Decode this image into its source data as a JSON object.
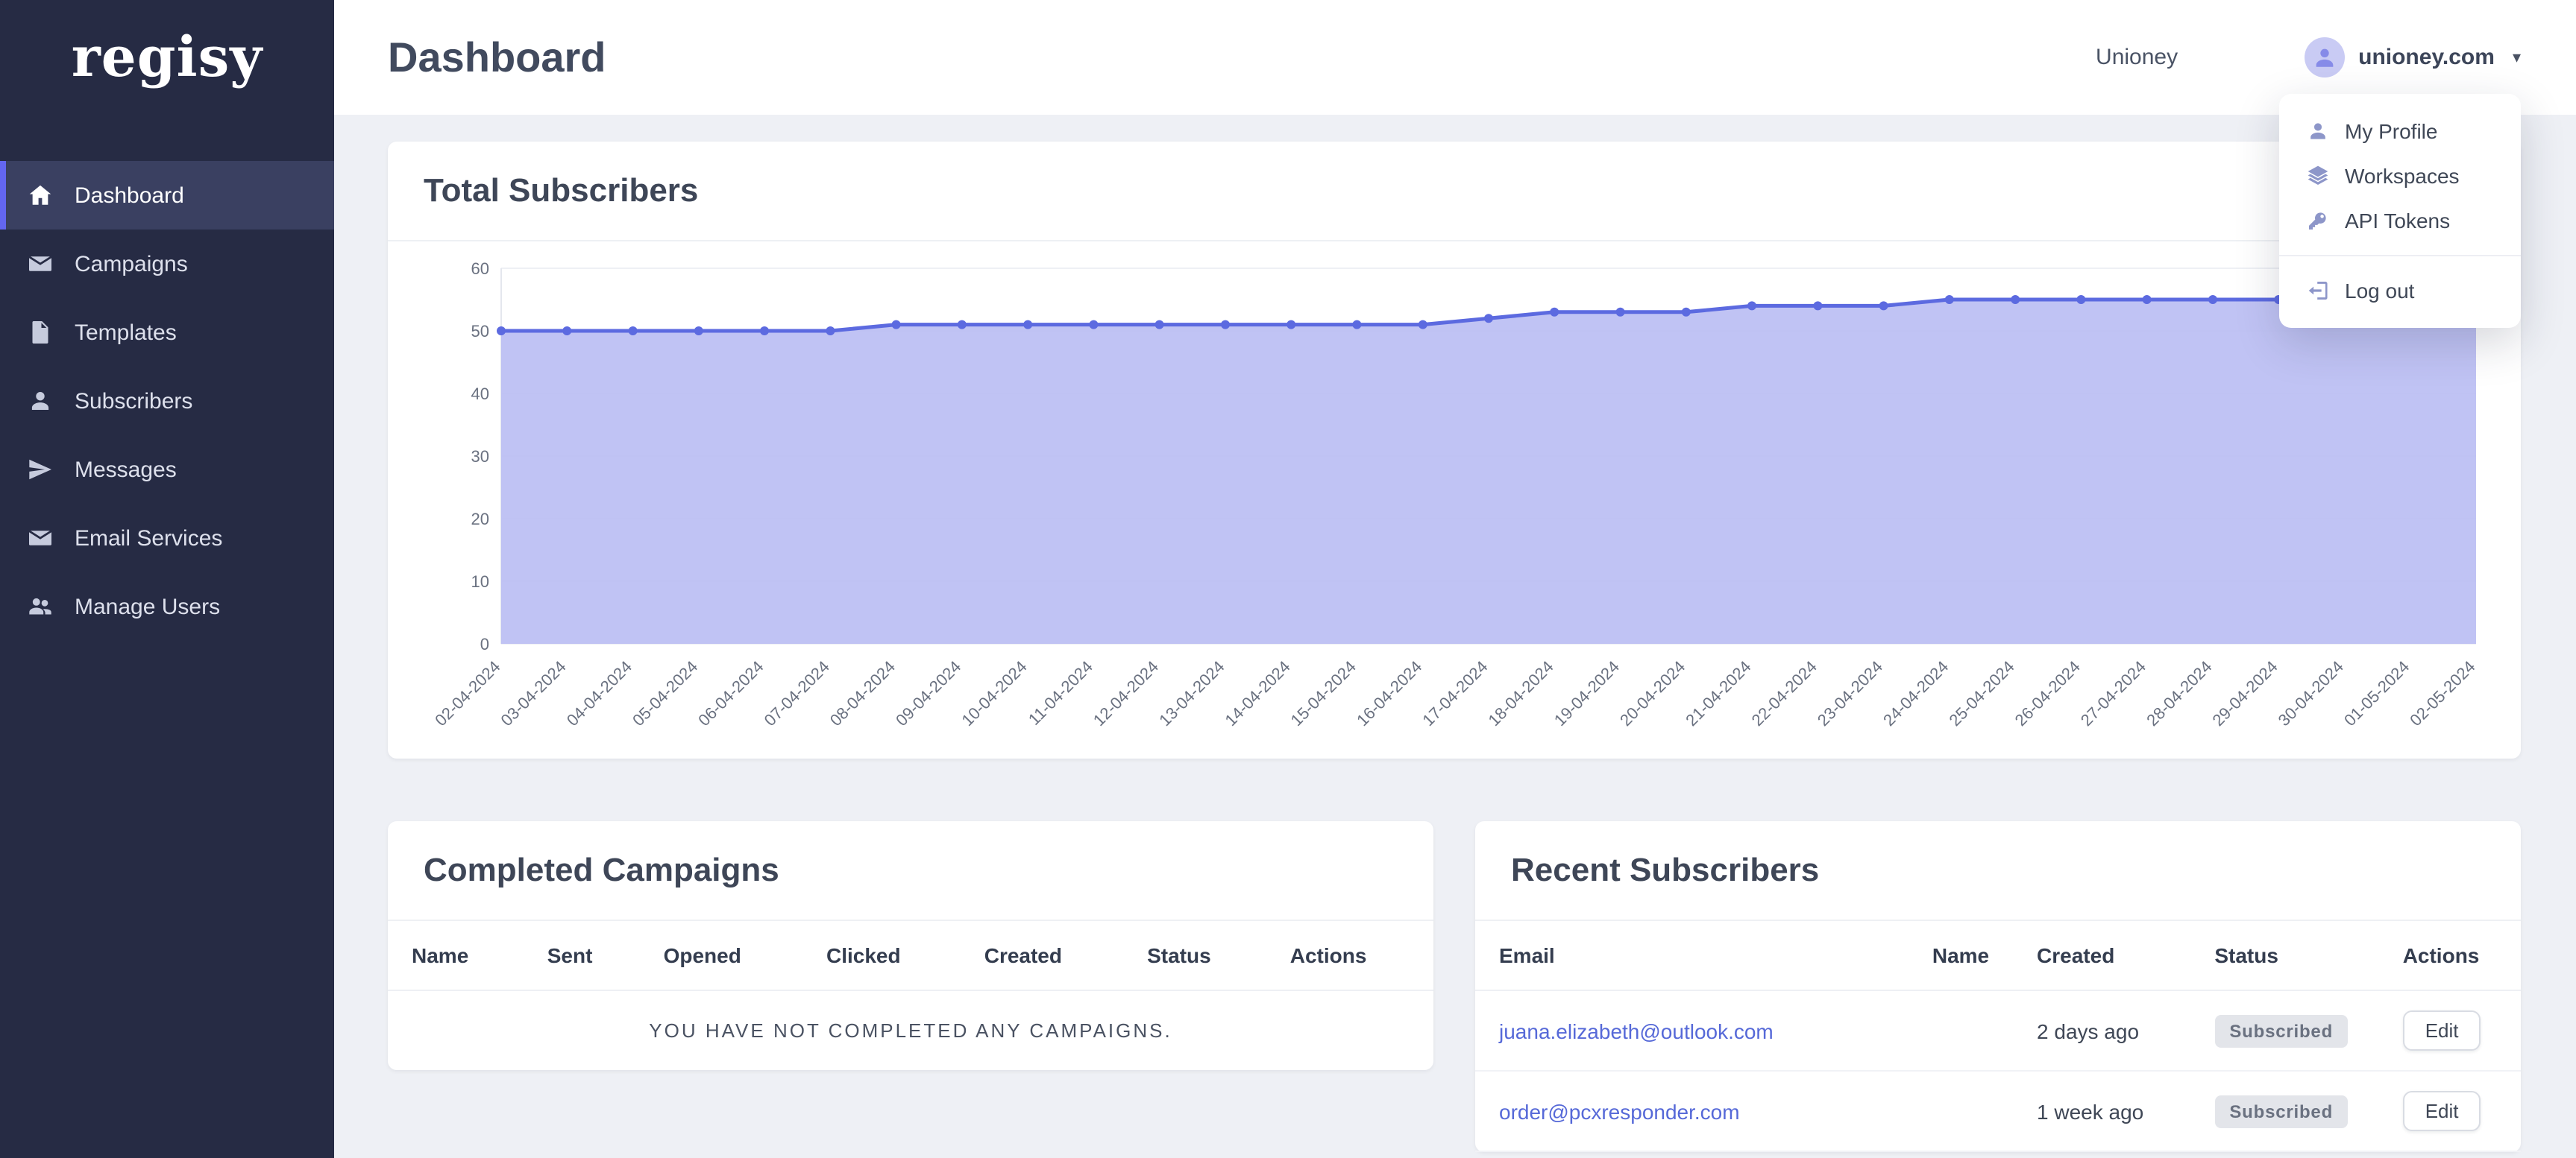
{
  "app": {
    "logo": "regisy"
  },
  "colors": {
    "accent": "#6366f1",
    "sidebar_bg": "#262b44",
    "link": "#5669d8",
    "chart_line": "#5c6ae0",
    "chart_fill": "#b9bdf3",
    "grid": "#eef0f5",
    "axis": "#e4e7ee",
    "tick_text": "#6a7180"
  },
  "sidebar": {
    "items": [
      {
        "label": "Dashboard",
        "icon": "home",
        "active": true
      },
      {
        "label": "Campaigns",
        "icon": "envelope",
        "active": false
      },
      {
        "label": "Templates",
        "icon": "file",
        "active": false
      },
      {
        "label": "Subscribers",
        "icon": "user",
        "active": false
      },
      {
        "label": "Messages",
        "icon": "paper-plane",
        "active": false
      },
      {
        "label": "Email Services",
        "icon": "envelope",
        "active": false
      },
      {
        "label": "Manage Users",
        "icon": "users",
        "active": false
      }
    ]
  },
  "topbar": {
    "title": "Dashboard",
    "workspace": "Unioney",
    "account": "unioney.com"
  },
  "user_menu": {
    "items": [
      {
        "label": "My Profile",
        "icon": "user"
      },
      {
        "label": "Workspaces",
        "icon": "layers"
      },
      {
        "label": "API Tokens",
        "icon": "key"
      }
    ],
    "logout": {
      "label": "Log out",
      "icon": "logout"
    }
  },
  "chart_card": {
    "title": "Total Subscribers"
  },
  "chart_data": {
    "type": "area",
    "title": "Total Subscribers",
    "x": [
      "02-04-2024",
      "03-04-2024",
      "04-04-2024",
      "05-04-2024",
      "06-04-2024",
      "07-04-2024",
      "08-04-2024",
      "09-04-2024",
      "10-04-2024",
      "11-04-2024",
      "12-04-2024",
      "13-04-2024",
      "14-04-2024",
      "15-04-2024",
      "16-04-2024",
      "17-04-2024",
      "18-04-2024",
      "19-04-2024",
      "20-04-2024",
      "21-04-2024",
      "22-04-2024",
      "23-04-2024",
      "24-04-2024",
      "25-04-2024",
      "26-04-2024",
      "27-04-2024",
      "28-04-2024",
      "29-04-2024",
      "30-04-2024",
      "01-05-2024",
      "02-05-2024"
    ],
    "series": [
      {
        "name": "Total Subscribers",
        "values": [
          50,
          50,
          50,
          50,
          50,
          50,
          51,
          51,
          51,
          51,
          51,
          51,
          51,
          51,
          51,
          52,
          53,
          53,
          53,
          54,
          54,
          54,
          55,
          55,
          55,
          55,
          55,
          55,
          55,
          56,
          57
        ]
      }
    ],
    "ylim": [
      0,
      60
    ],
    "yticks": [
      0,
      10,
      20,
      30,
      40,
      50,
      60
    ],
    "grid": true,
    "legend": false,
    "marker": "circle",
    "xlabel": "",
    "ylabel": ""
  },
  "campaigns_card": {
    "title": "Completed Campaigns",
    "columns": [
      "Name",
      "Sent",
      "Opened",
      "Clicked",
      "Created",
      "Status",
      "Actions"
    ],
    "empty_message": "YOU HAVE NOT COMPLETED ANY CAMPAIGNS."
  },
  "subscribers_card": {
    "title": "Recent Subscribers",
    "columns": [
      "Email",
      "Name",
      "Created",
      "Status",
      "Actions"
    ],
    "edit_label": "Edit",
    "rows": [
      {
        "email": "juana.elizabeth@outlook.com",
        "name": "",
        "created": "2 days ago",
        "status": "Subscribed"
      },
      {
        "email": "order@pcxresponder.com",
        "name": "",
        "created": "1 week ago",
        "status": "Subscribed"
      }
    ]
  }
}
